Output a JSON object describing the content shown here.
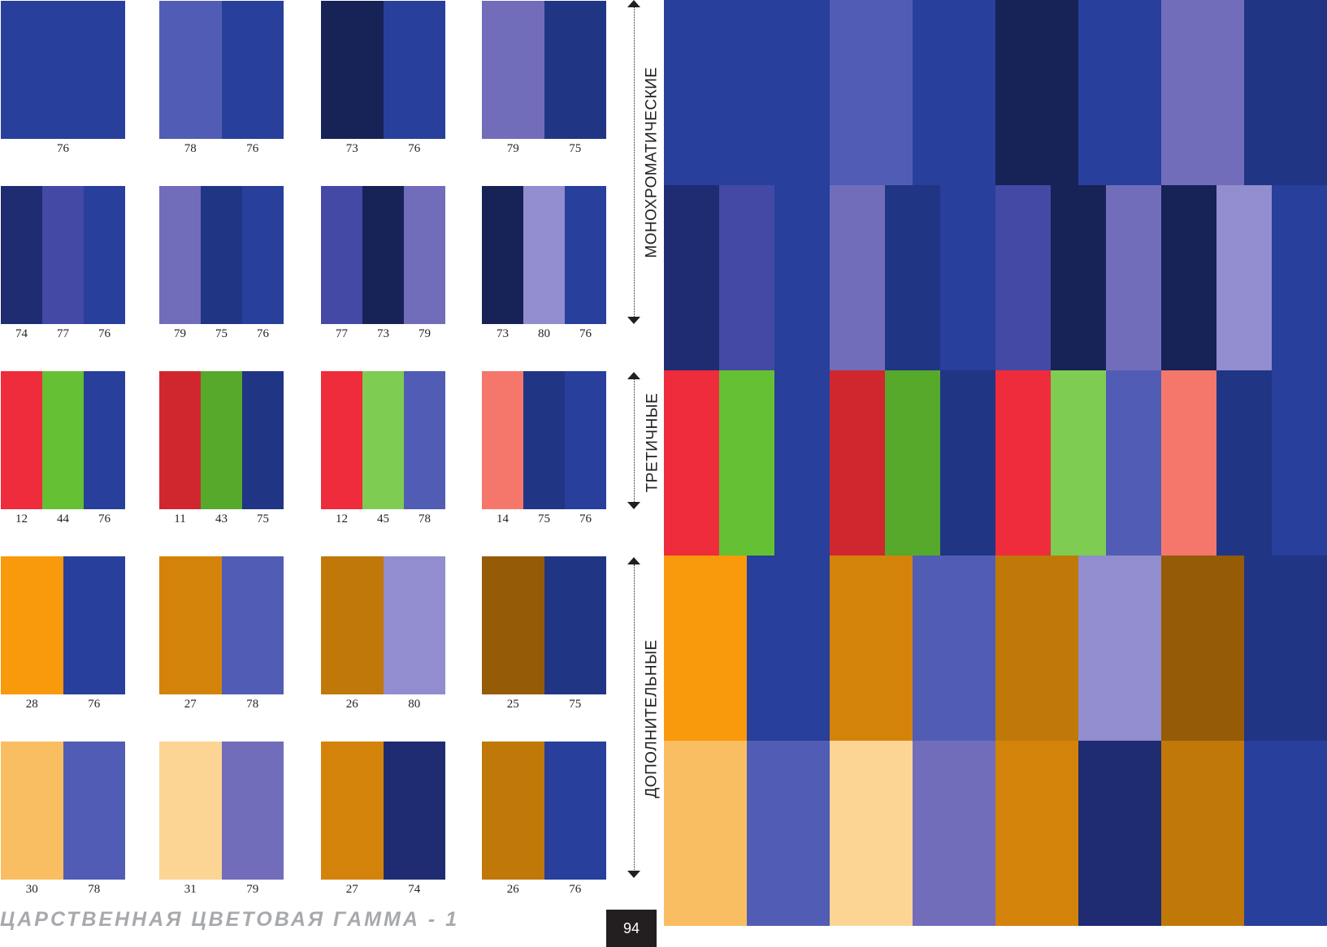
{
  "colors": {
    "c11": "#d0272f",
    "c12": "#ee2c3b",
    "c14": "#f5776c",
    "c25": "#955b07",
    "c26": "#c07809",
    "c27": "#d4830a",
    "c28": "#f89a0c",
    "c30": "#f9be61",
    "c31": "#fcd595",
    "c43": "#56a92b",
    "c44": "#65c133",
    "c45": "#7fcc52",
    "c73": "#172257",
    "c74": "#1f2c72",
    "c75": "#213585",
    "c76": "#283f9b",
    "c77": "#4349a5",
    "c78": "#515db4",
    "c79": "#716dbb",
    "c80": "#918dce"
  },
  "swatches": [
    {
      "row": 0,
      "col": 0,
      "codes": [
        "76"
      ]
    },
    {
      "row": 0,
      "col": 1,
      "codes": [
        "78",
        "76"
      ]
    },
    {
      "row": 0,
      "col": 2,
      "codes": [
        "73",
        "76"
      ]
    },
    {
      "row": 0,
      "col": 3,
      "codes": [
        "79",
        "75"
      ]
    },
    {
      "row": 1,
      "col": 0,
      "codes": [
        "74",
        "77",
        "76"
      ]
    },
    {
      "row": 1,
      "col": 1,
      "codes": [
        "79",
        "75",
        "76"
      ]
    },
    {
      "row": 1,
      "col": 2,
      "codes": [
        "77",
        "73",
        "79"
      ]
    },
    {
      "row": 1,
      "col": 3,
      "codes": [
        "73",
        "80",
        "76"
      ]
    },
    {
      "row": 2,
      "col": 0,
      "codes": [
        "12",
        "44",
        "76"
      ]
    },
    {
      "row": 2,
      "col": 1,
      "codes": [
        "11",
        "43",
        "75"
      ]
    },
    {
      "row": 2,
      "col": 2,
      "codes": [
        "12",
        "45",
        "78"
      ]
    },
    {
      "row": 2,
      "col": 3,
      "codes": [
        "14",
        "75",
        "76"
      ]
    },
    {
      "row": 3,
      "col": 0,
      "codes": [
        "28",
        "76"
      ]
    },
    {
      "row": 3,
      "col": 1,
      "codes": [
        "27",
        "78"
      ]
    },
    {
      "row": 3,
      "col": 2,
      "codes": [
        "26",
        "80"
      ]
    },
    {
      "row": 3,
      "col": 3,
      "codes": [
        "25",
        "75"
      ]
    },
    {
      "row": 4,
      "col": 0,
      "codes": [
        "30",
        "78"
      ]
    },
    {
      "row": 4,
      "col": 1,
      "codes": [
        "31",
        "79"
      ]
    },
    {
      "row": 4,
      "col": 2,
      "codes": [
        "27",
        "74"
      ]
    },
    {
      "row": 4,
      "col": 3,
      "codes": [
        "26",
        "76"
      ]
    }
  ],
  "sections": {
    "monochromatic": "МОНОХРОМАТИЧЕСКИЕ",
    "tertiary": "ТРЕТИЧНЫЕ",
    "complementary": "ДОПОЛНИТЕЛЬНЫЕ"
  },
  "footer": {
    "title": "ЦАРСТВЕННАЯ ЦВЕТОВАЯ ГАММА - 1",
    "page_number": "94"
  }
}
